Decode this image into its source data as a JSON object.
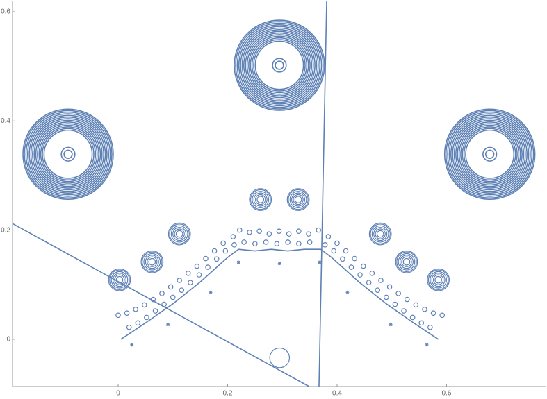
{
  "chart_data": {
    "type": "scatter",
    "color": "#5e81b5",
    "axis_color": "#999999",
    "xlim": [
      -0.193,
      0.781
    ],
    "ylim": [
      -0.0865,
      0.619
    ],
    "xticks": [
      0,
      0.2,
      0.4,
      0.6
    ],
    "yticks": [
      0,
      0.2,
      0.4,
      0.6
    ],
    "series": [
      {
        "kind": "rings",
        "x": [
          -0.0914,
          0.2946,
          0.679
        ],
        "y": [
          0.339,
          0.502,
          0.339
        ],
        "radii": [
          0.0075,
          0.0125,
          0.044,
          0.047,
          0.05,
          0.053,
          0.056,
          0.059,
          0.062,
          0.065,
          0.068,
          0.071,
          0.074,
          0.077,
          0.08,
          0.0825
        ]
      },
      {
        "kind": "rings",
        "x": [
          0.26,
          0.329,
          0.112,
          0.062,
          0.0025,
          0.479,
          0.527,
          0.585
        ],
        "y": [
          0.256,
          0.256,
          0.193,
          0.142,
          0.109,
          0.193,
          0.142,
          0.109
        ],
        "radii": [
          0.006,
          0.009,
          0.012,
          0.015,
          0.018,
          0.02
        ]
      },
      {
        "kind": "rings",
        "x": [
          0.295
        ],
        "y": [
          -0.034
        ],
        "radii": [
          0.018
        ]
      },
      {
        "kind": "dots",
        "x": [
          0.0,
          0.016,
          0.032,
          0.048,
          0.064,
          0.08,
          0.096,
          0.112,
          0.128,
          0.144,
          0.16,
          0.176,
          0.192,
          0.21,
          0.222,
          0.24,
          0.258,
          0.276,
          0.294,
          0.312,
          0.33,
          0.348,
          0.366,
          0.384,
          0.4,
          0.416,
          0.432,
          0.448,
          0.464,
          0.48,
          0.496,
          0.512,
          0.528,
          0.544,
          0.56,
          0.576,
          0.592
        ],
        "y": [
          0.044,
          0.048,
          0.055,
          0.063,
          0.073,
          0.084,
          0.096,
          0.108,
          0.121,
          0.134,
          0.148,
          0.162,
          0.176,
          0.188,
          0.2,
          0.196,
          0.198,
          0.193,
          0.198,
          0.193,
          0.198,
          0.193,
          0.2,
          0.188,
          0.176,
          0.162,
          0.148,
          0.134,
          0.121,
          0.108,
          0.096,
          0.084,
          0.073,
          0.063,
          0.055,
          0.048,
          0.044
        ]
      },
      {
        "kind": "dots",
        "x": [
          0.02,
          0.036,
          0.052,
          0.068,
          0.084,
          0.1,
          0.116,
          0.132,
          0.148,
          0.164,
          0.18,
          0.196,
          0.212,
          0.23,
          0.25,
          0.27,
          0.29,
          0.31,
          0.33,
          0.35,
          0.378,
          0.394,
          0.41,
          0.426,
          0.442,
          0.458,
          0.474,
          0.49,
          0.506,
          0.522,
          0.538,
          0.554,
          0.57
        ],
        "y": [
          0.022,
          0.03,
          0.04,
          0.052,
          0.064,
          0.077,
          0.09,
          0.104,
          0.118,
          0.132,
          0.147,
          0.162,
          0.173,
          0.178,
          0.175,
          0.178,
          0.175,
          0.178,
          0.175,
          0.178,
          0.173,
          0.162,
          0.147,
          0.132,
          0.118,
          0.104,
          0.09,
          0.077,
          0.064,
          0.052,
          0.04,
          0.03,
          0.022
        ]
      },
      {
        "kind": "line",
        "x": [
          0.005,
          0.05,
          0.1,
          0.15,
          0.2,
          0.22,
          0.25,
          0.28,
          0.31,
          0.34,
          0.37,
          0.39,
          0.44,
          0.49,
          0.54,
          0.585
        ],
        "y": [
          0.0,
          0.03,
          0.065,
          0.105,
          0.15,
          0.165,
          0.162,
          0.165,
          0.162,
          0.165,
          0.165,
          0.15,
          0.105,
          0.065,
          0.03,
          0.0
        ]
      },
      {
        "kind": "stars",
        "x": [
          0.025,
          0.091,
          0.169,
          0.22,
          0.295,
          0.368,
          0.419,
          0.498,
          0.564
        ],
        "y": [
          -0.01,
          0.027,
          0.086,
          0.141,
          0.139,
          0.141,
          0.086,
          0.027,
          -0.01
        ]
      },
      {
        "kind": "line",
        "x": [
          -0.193,
          0.349
        ],
        "y": [
          0.212,
          -0.0865
        ]
      },
      {
        "kind": "line",
        "x": [
          0.381,
          0.367
        ],
        "y": [
          0.619,
          -0.0865
        ]
      }
    ]
  }
}
